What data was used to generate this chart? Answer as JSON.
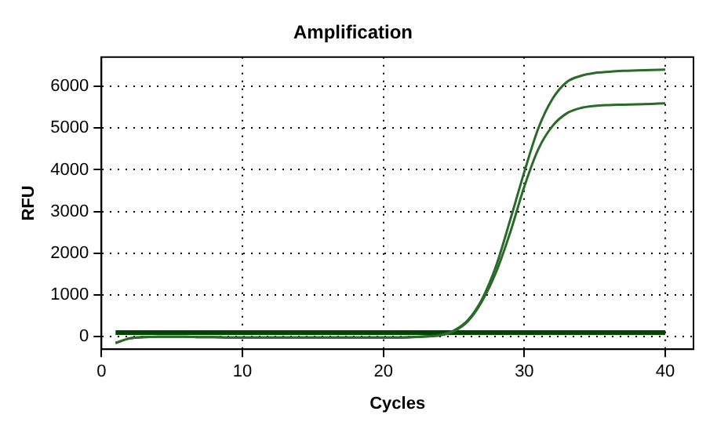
{
  "chart_data": {
    "type": "line",
    "title": "Amplification",
    "xlabel": "Cycles",
    "ylabel": "RFU",
    "x": [
      1,
      2,
      3,
      4,
      5,
      6,
      7,
      8,
      9,
      10,
      11,
      12,
      13,
      14,
      15,
      16,
      17,
      18,
      19,
      20,
      21,
      22,
      23,
      24,
      25,
      26,
      27,
      28,
      29,
      30,
      31,
      32,
      33,
      34,
      35,
      36,
      37,
      38,
      39,
      40
    ],
    "series": [
      {
        "color": "#2a6a2a",
        "values": [
          -150,
          -40,
          -10,
          0,
          0,
          0,
          -10,
          -10,
          -20,
          -20,
          -20,
          -20,
          -20,
          -20,
          -20,
          -20,
          -20,
          -20,
          -20,
          -20,
          -20,
          -10,
          10,
          40,
          150,
          400,
          900,
          1700,
          2800,
          3950,
          5000,
          5700,
          6100,
          6250,
          6320,
          6350,
          6370,
          6380,
          6390,
          6400
        ]
      },
      {
        "color": "#2a6a2a",
        "values": [
          -150,
          -40,
          -10,
          0,
          0,
          0,
          -10,
          -10,
          -20,
          -20,
          -20,
          -20,
          -20,
          -20,
          -20,
          -20,
          -20,
          -20,
          -20,
          -20,
          -20,
          -10,
          5,
          30,
          130,
          370,
          850,
          1550,
          2500,
          3600,
          4500,
          5050,
          5350,
          5480,
          5530,
          5550,
          5560,
          5570,
          5580,
          5590
        ]
      },
      {
        "color": "#004400",
        "x": [
          1,
          40
        ],
        "values": [
          100,
          100
        ]
      }
    ],
    "xlim": [
      0,
      42
    ],
    "xticks": [
      0,
      10,
      20,
      30,
      40
    ],
    "ylim": [
      -300,
      6700
    ],
    "yticks": [
      0,
      1000,
      2000,
      3000,
      4000,
      5000,
      6000
    ],
    "grid": true,
    "legend": false,
    "marker": "none",
    "line_style": "solid"
  }
}
